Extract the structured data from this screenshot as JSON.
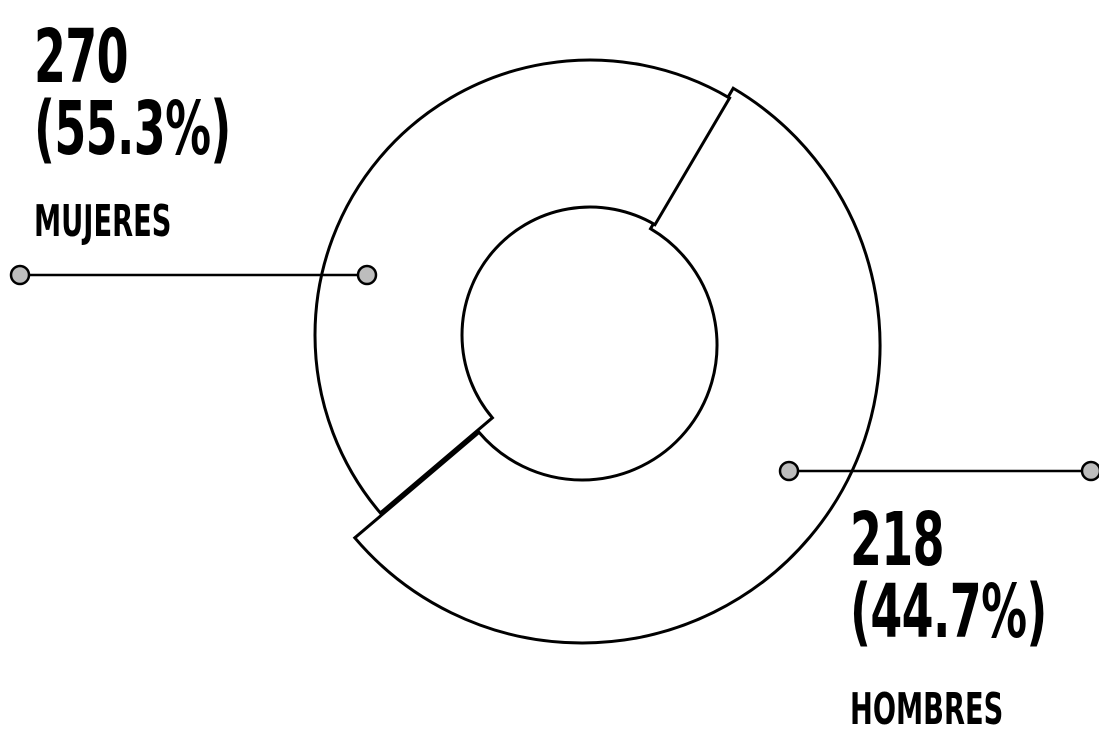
{
  "chart_data": {
    "type": "pie",
    "donut": true,
    "title": "",
    "legend": "none",
    "slices": [
      {
        "label": "MUJERES",
        "value": 270,
        "percent_label": "(55.3%)",
        "value_label": "270",
        "color": "#ffffff",
        "stroke": "#000000"
      },
      {
        "label": "HOMBRES",
        "value": 218,
        "percent_label": "(44.7%)",
        "value_label": "218",
        "color": "#ffffff",
        "stroke": "#000000"
      }
    ],
    "leader_dot_color": "#bdbdbd"
  }
}
